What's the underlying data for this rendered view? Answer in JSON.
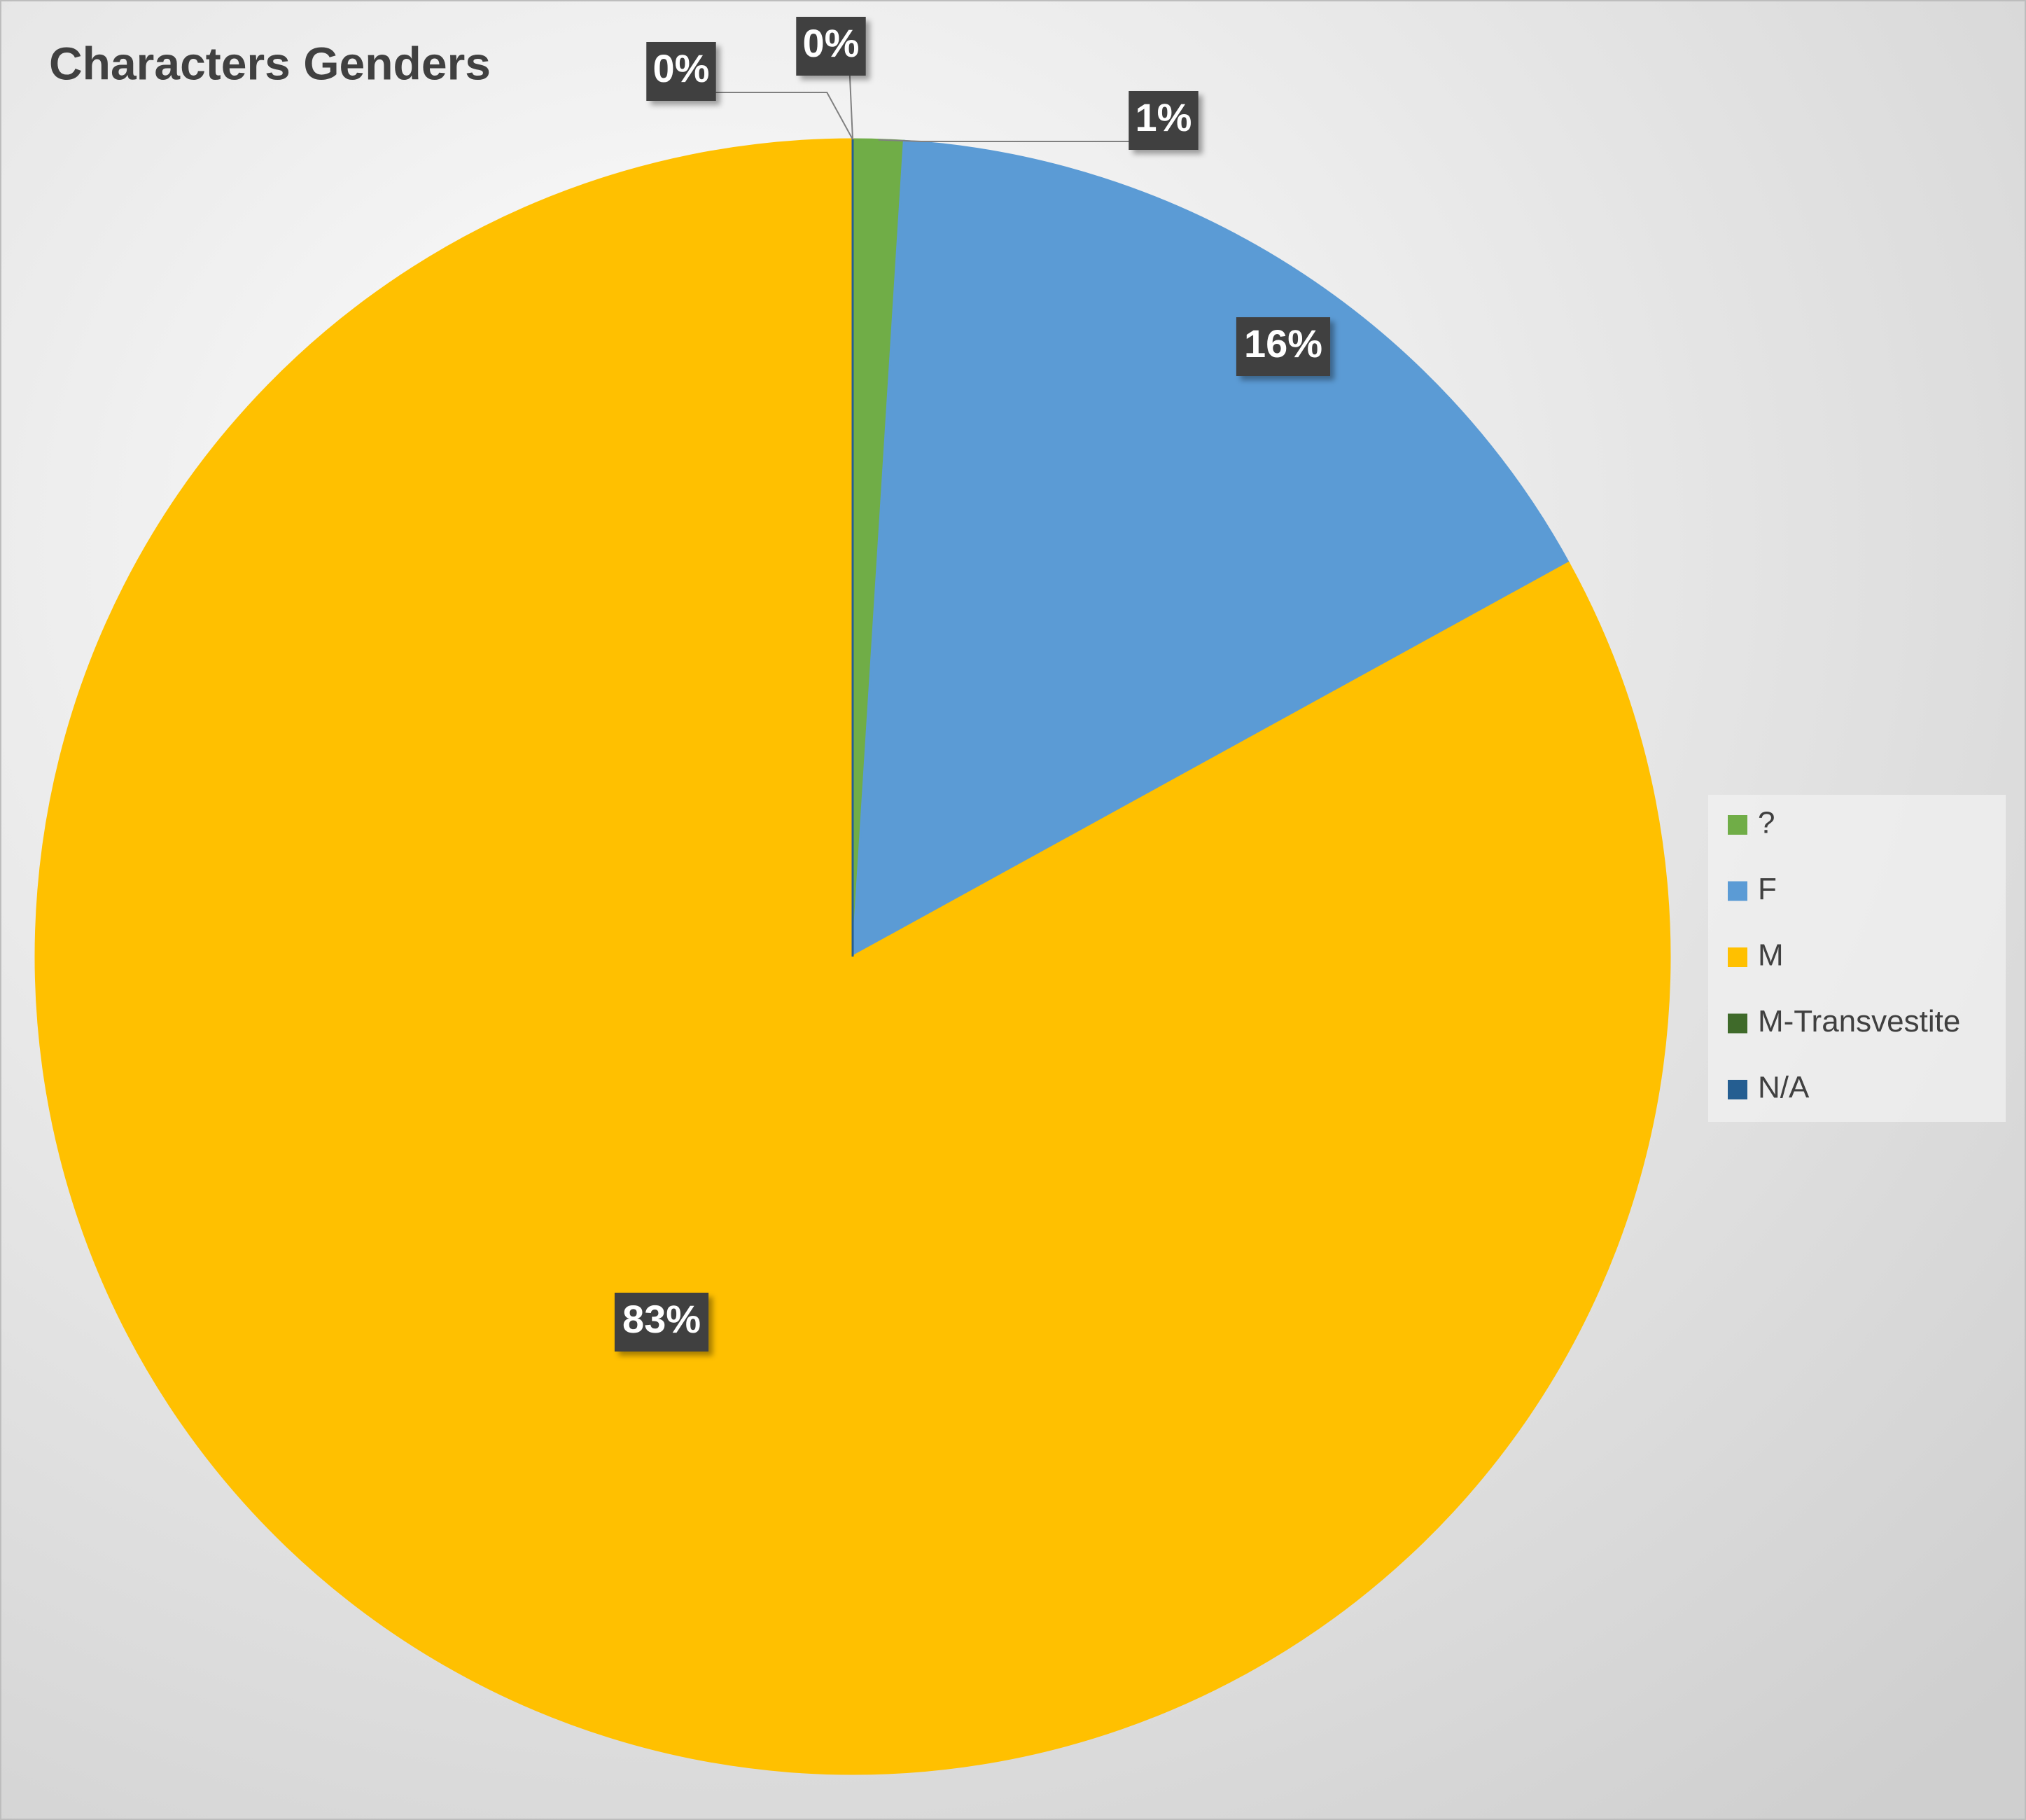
{
  "chart_data": {
    "type": "pie",
    "title": "Characters Genders",
    "categories": [
      "?",
      "F",
      "M",
      "M-Transvestite",
      "N/A"
    ],
    "values": [
      1,
      16,
      83,
      0,
      0
    ],
    "value_labels": [
      "1%",
      "16%",
      "83%",
      "0%",
      "0%"
    ],
    "colors": [
      "#70ad47",
      "#5b9bd5",
      "#ffc000",
      "#3f6a2a",
      "#255e91"
    ],
    "legend": "right"
  }
}
